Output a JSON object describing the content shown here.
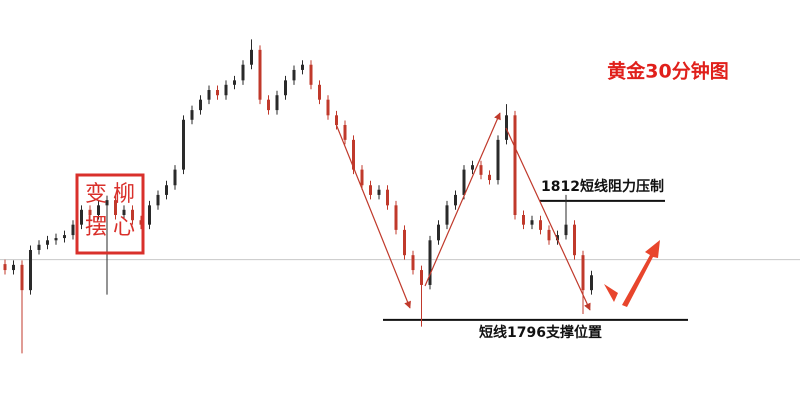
{
  "chart_data": {
    "type": "candlestick",
    "title": "黄金30分钟图",
    "ylim": [
      1785.1,
      1839
    ],
    "up_color": "#2a2a2a",
    "down_color": "#c0392b",
    "open": [
      1803.5,
      1802.7,
      1803.4,
      1800.0,
      1805.4,
      1806.1,
      1806.7,
      1807.0,
      1807.4,
      1808.8,
      1810.8,
      1810.1,
      1811.4,
      1812.1,
      1810.1,
      1810.8,
      1809.4,
      1808.8,
      1811.4,
      1812.8,
      1814.1,
      1816.2,
      1822.9,
      1824.2,
      1825.6,
      1826.9,
      1826.2,
      1827.6,
      1828.2,
      1830.3,
      1832.3,
      1825.6,
      1824.2,
      1826.2,
      1828.2,
      1829.6,
      1830.3,
      1827.6,
      1825.6,
      1823.5,
      1822.2,
      1820.2,
      1816.2,
      1814.1,
      1812.8,
      1813.5,
      1811.4,
      1808.1,
      1804.7,
      1802.7,
      1800.7,
      1806.7,
      1808.8,
      1811.4,
      1812.8,
      1816.2,
      1816.8,
      1815.5,
      1814.8,
      1820.2,
      1823.5,
      1810.1,
      1808.8,
      1809.4,
      1808.1,
      1806.7,
      1807.4,
      1808.8,
      1804.7,
      1800.0
    ],
    "high": [
      1804.1,
      1804.0,
      1804.0,
      1806.0,
      1806.7,
      1807.3,
      1807.6,
      1808.0,
      1809.4,
      1811.4,
      1811.4,
      1812.0,
      1812.7,
      1812.7,
      1811.4,
      1811.4,
      1810.0,
      1812.0,
      1813.4,
      1814.7,
      1816.8,
      1823.5,
      1824.8,
      1826.2,
      1827.5,
      1827.5,
      1828.2,
      1828.8,
      1830.9,
      1833.7,
      1832.9,
      1826.2,
      1826.8,
      1828.8,
      1830.2,
      1830.9,
      1830.9,
      1828.2,
      1826.2,
      1824.1,
      1822.8,
      1820.8,
      1816.8,
      1814.7,
      1814.1,
      1814.1,
      1812.0,
      1808.7,
      1805.3,
      1803.3,
      1807.3,
      1809.4,
      1812.0,
      1813.4,
      1816.8,
      1817.4,
      1817.4,
      1816.1,
      1820.8,
      1825.0,
      1824.1,
      1810.7,
      1810.0,
      1810.0,
      1808.7,
      1808.0,
      1812.8,
      1809.4,
      1805.3,
      1802.6
    ],
    "low": [
      1802.1,
      1802.1,
      1791.5,
      1799.4,
      1804.8,
      1805.5,
      1806.1,
      1806.4,
      1806.8,
      1808.2,
      1809.5,
      1809.5,
      1799.4,
      1809.5,
      1809.5,
      1808.8,
      1808.2,
      1808.2,
      1810.8,
      1812.2,
      1813.5,
      1815.6,
      1822.3,
      1823.6,
      1825.0,
      1825.6,
      1825.6,
      1827.0,
      1827.6,
      1829.7,
      1825.0,
      1823.6,
      1823.6,
      1825.6,
      1827.6,
      1829.0,
      1827.0,
      1825.0,
      1822.9,
      1821.6,
      1819.6,
      1815.6,
      1813.5,
      1812.2,
      1812.2,
      1810.8,
      1807.5,
      1804.1,
      1802.1,
      1795.1,
      1800.1,
      1806.1,
      1808.2,
      1810.8,
      1812.2,
      1815.6,
      1814.9,
      1814.2,
      1814.2,
      1819.6,
      1809.5,
      1808.2,
      1808.2,
      1807.5,
      1806.1,
      1806.1,
      1806.8,
      1804.1,
      1796.8,
      1799.4
    ],
    "close": [
      1802.7,
      1803.4,
      1800.0,
      1805.4,
      1806.1,
      1806.7,
      1807.0,
      1807.4,
      1808.8,
      1810.8,
      1810.1,
      1811.4,
      1812.1,
      1810.1,
      1810.8,
      1809.4,
      1808.8,
      1811.4,
      1812.8,
      1814.1,
      1816.2,
      1822.9,
      1824.2,
      1825.6,
      1826.9,
      1826.2,
      1827.6,
      1828.2,
      1830.3,
      1832.3,
      1825.6,
      1824.2,
      1826.2,
      1828.2,
      1829.6,
      1830.3,
      1827.6,
      1825.6,
      1823.5,
      1822.2,
      1820.2,
      1816.2,
      1814.1,
      1812.8,
      1813.5,
      1811.4,
      1808.1,
      1804.7,
      1802.7,
      1800.7,
      1806.7,
      1808.8,
      1811.4,
      1812.8,
      1816.2,
      1816.8,
      1815.5,
      1814.8,
      1820.2,
      1823.5,
      1810.1,
      1808.8,
      1809.4,
      1808.1,
      1806.7,
      1807.4,
      1808.8,
      1804.7,
      1800.0,
      1802.0
    ],
    "reference_line": 1804.1,
    "levels": [
      {
        "label": "1812短线阻力压制",
        "value": 1812
      },
      {
        "label": "短线1796支撑位置",
        "value": 1796
      }
    ],
    "stamp": [
      "变",
      "柳",
      "摆",
      "心"
    ]
  }
}
